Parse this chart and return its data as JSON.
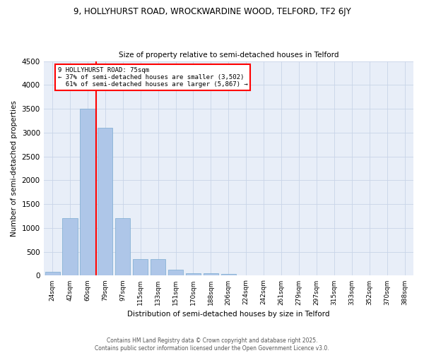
{
  "title_line1": "9, HOLLYHURST ROAD, WROCKWARDINE WOOD, TELFORD, TF2 6JY",
  "title_line2": "Size of property relative to semi-detached houses in Telford",
  "xlabel": "Distribution of semi-detached houses by size in Telford",
  "ylabel": "Number of semi-detached properties",
  "categories": [
    "24sqm",
    "42sqm",
    "60sqm",
    "79sqm",
    "97sqm",
    "115sqm",
    "133sqm",
    "151sqm",
    "170sqm",
    "188sqm",
    "206sqm",
    "224sqm",
    "242sqm",
    "261sqm",
    "279sqm",
    "297sqm",
    "315sqm",
    "333sqm",
    "352sqm",
    "370sqm",
    "388sqm"
  ],
  "values": [
    80,
    1200,
    3500,
    3100,
    1200,
    350,
    350,
    130,
    50,
    50,
    30,
    0,
    0,
    0,
    0,
    0,
    0,
    0,
    0,
    0,
    0
  ],
  "bar_color": "#aec6e8",
  "bar_edge_color": "#7aaad0",
  "vline_color": "red",
  "property_label": "9 HOLLYHURST ROAD: 75sqm",
  "smaller_pct": 37,
  "smaller_count": 3502,
  "larger_pct": 61,
  "larger_count": 5867,
  "ylim": [
    0,
    4500
  ],
  "yticks": [
    0,
    500,
    1000,
    1500,
    2000,
    2500,
    3000,
    3500,
    4000,
    4500
  ],
  "grid_color": "#c8d4e8",
  "background_color": "#e8eef8",
  "title_fontsize": 8,
  "subtitle_fontsize": 7.5,
  "footer_line1": "Contains HM Land Registry data © Crown copyright and database right 2025.",
  "footer_line2": "Contains public sector information licensed under the Open Government Licence v3.0."
}
